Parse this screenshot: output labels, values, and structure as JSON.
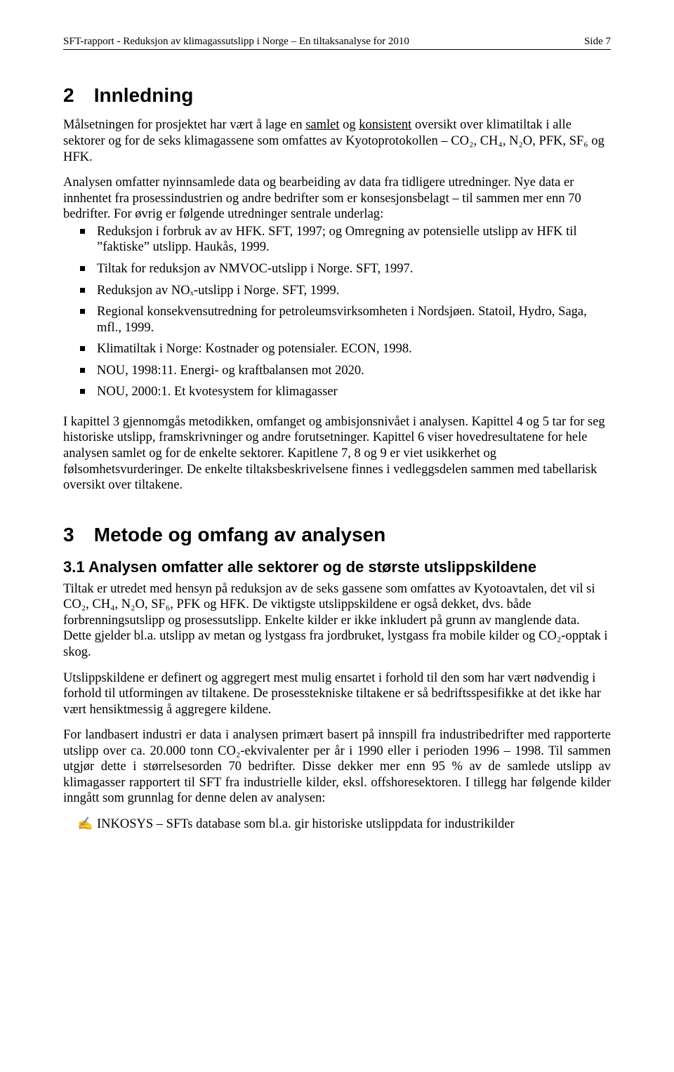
{
  "colors": {
    "text": "#000000",
    "background": "#ffffff",
    "rule": "#000000",
    "bullet": "#000000"
  },
  "typography": {
    "body_family": "Times New Roman",
    "body_size_pt": 14,
    "heading_family": "Arial",
    "h1_size_pt": 21,
    "h2_size_pt": 17,
    "header_size_pt": 11
  },
  "header": {
    "left": "SFT-rapport - Reduksjon av klimagassutslipp i Norge – En tiltaksanalyse for 2010",
    "right": "Side 7"
  },
  "section2": {
    "number": "2",
    "title": "Innledning",
    "p1_pre": "Målsetningen for prosjektet har vært å lage en ",
    "p1_u1": "samlet",
    "p1_mid": " og ",
    "p1_u2": "konsistent",
    "p1_post": " oversikt over klimatiltak i alle sektorer og for de seks klimagassene som omfattes av Kyotoprotokollen – CO₂, CH₄, N₂O, PFK, SF₆ og HFK.",
    "p2": "Analysen omfatter nyinnsamlede data og bearbeiding av data fra tidligere utredninger. Nye data er innhentet fra prosessindustrien og andre bedrifter som er konsesjonsbelagt – til sammen mer enn 70 bedrifter. For øvrig er følgende utredninger sentrale underlag:",
    "bullets": [
      "Reduksjon i forbruk av av HFK. SFT, 1997; og Omregning av potensielle utslipp av HFK til ”faktiske” utslipp. Haukås, 1999.",
      "Tiltak for reduksjon av NMVOC-utslipp i Norge. SFT, 1997.",
      "Reduksjon av NOₓ-utslipp i Norge. SFT, 1999.",
      "Regional konsekvensutredning for petroleumsvirksomheten i Nordsjøen. Statoil, Hydro, Saga, mfl., 1999.",
      "Klimatiltak i Norge: Kostnader og potensialer. ECON, 1998.",
      "NOU, 1998:11. Energi- og kraftbalansen mot 2020.",
      "NOU, 2000:1. Et kvotesystem for klimagasser"
    ],
    "p3": "I kapittel 3 gjennomgås metodikken, omfanget og ambisjonsnivået i analysen. Kapittel 4 og 5 tar for seg historiske utslipp, framskrivninger og andre forutsetninger. Kapittel 6 viser hovedresultatene for hele analysen samlet og for de enkelte sektorer. Kapitlene 7, 8 og 9 er viet usikkerhet og følsomhetsvurderinger. De enkelte tiltaksbeskrivelsene finnes i vedleggsdelen sammen med tabellarisk oversikt over tiltakene."
  },
  "section3": {
    "number": "3",
    "title": "Metode og omfang av analysen",
    "sub_number": "3.1",
    "sub_title": "Analysen omfatter alle sektorer og de største utslippskildene",
    "p1": "Tiltak er utredet med hensyn på reduksjon av de seks gassene som omfattes av Kyotoavtalen, det vil si CO₂, CH₄, N₂O, SF₆, PFK og HFK. De viktigste utslippskildene er også dekket, dvs. både forbrenningsutslipp og prosessutslipp. Enkelte kilder er ikke inkludert på grunn av manglende data. Dette gjelder bl.a. utslipp av metan og lystgass fra jordbruket, lystgass fra mobile kilder og CO₂-opptak i skog.",
    "p2": "Utslippskildene er definert og aggregert mest mulig ensartet i forhold til den som har vært nødvendig i forhold til utformingen av tiltakene. De prosesstekniske tiltakene er så bedriftsspesifikke at det ikke har vært hensiktmessig å aggregere kildene.",
    "p3": "For landbasert industri er data i analysen primært basert på innspill fra industribedrifter med rapporterte utslipp over ca. 20.000 tonn CO₂-ekvivalenter per år i 1990 eller i perioden 1996 – 1998. Til sammen utgjør dette i størrelsesorden 70 bedrifter. Disse dekker mer enn 95 % av de samlede utslipp av klimagasser rapportert til SFT fra industrielle kilder, eksl. offshoresektoren. I tillegg har følgende kilder inngått som grunnlag for denne delen av analysen:",
    "hand_item": "INKOSYS – SFTs database som bl.a. gir historiske utslippdata for industrikilder",
    "hand_glyph": "✍"
  }
}
